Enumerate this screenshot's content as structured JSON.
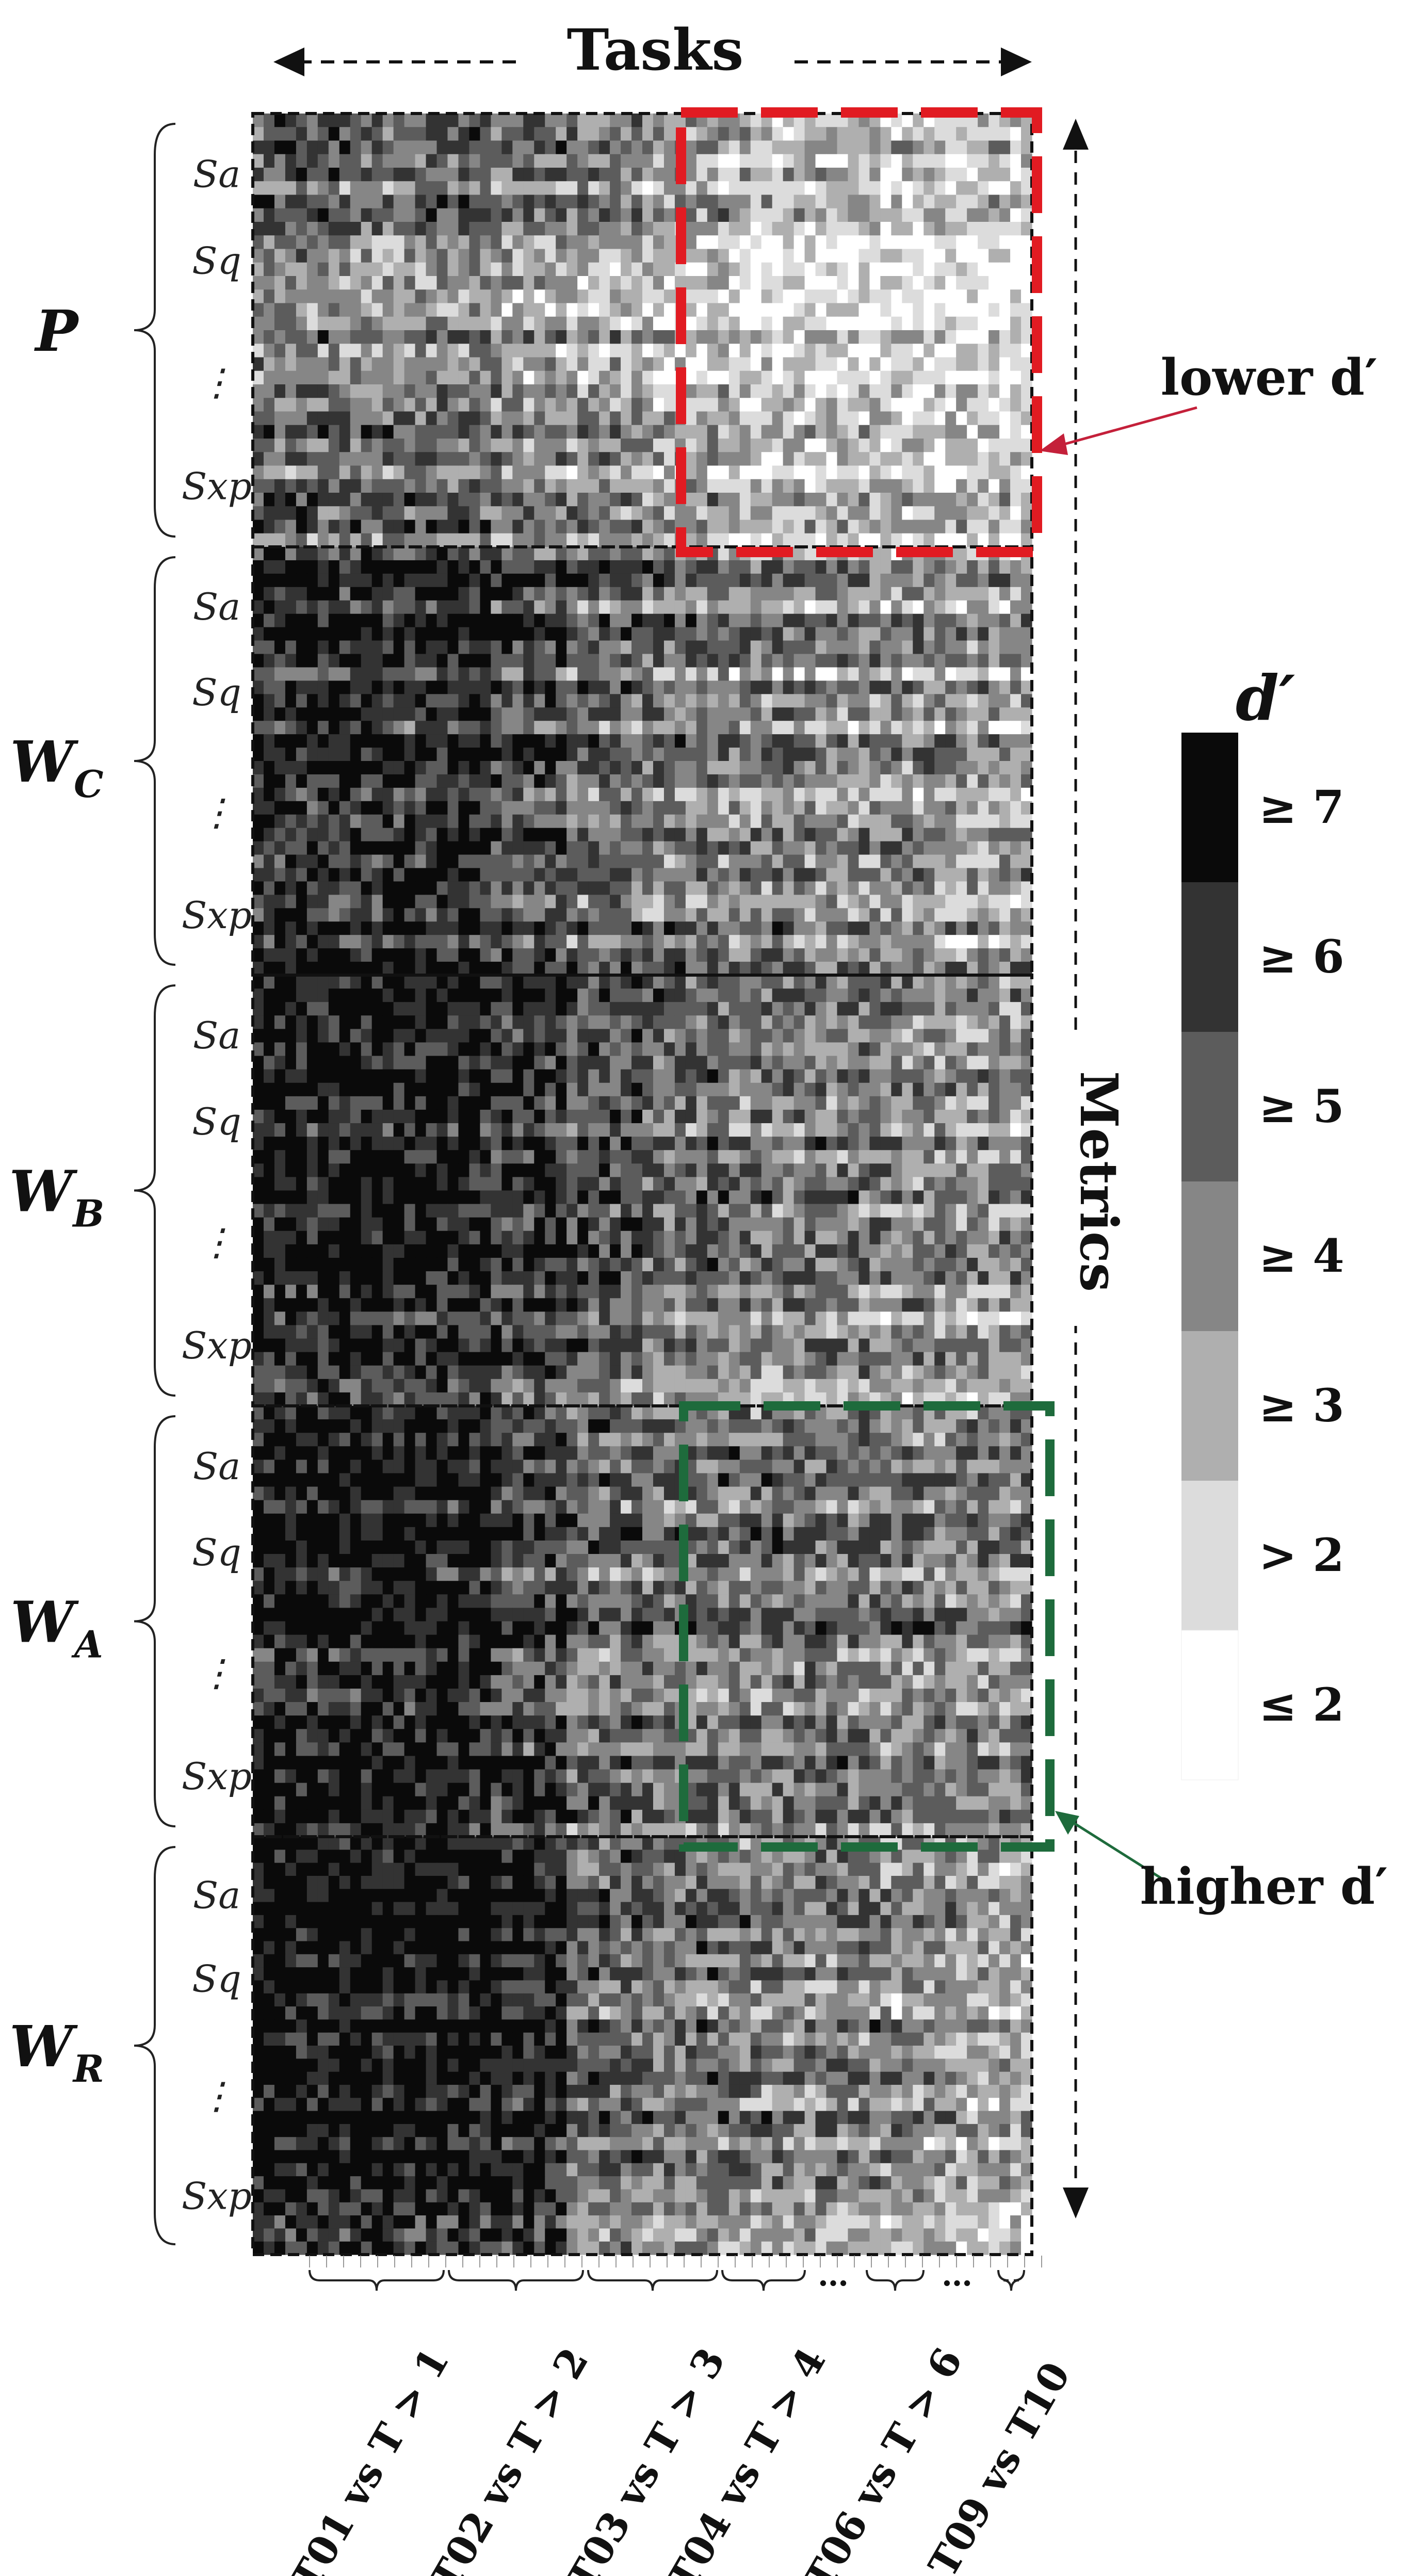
{
  "chart_data": {
    "type": "heatmap",
    "title": "Tasks",
    "y_axis_label": "Metrics",
    "legend": {
      "title": "d′",
      "entries": [
        "≥ 7",
        "≥ 6",
        "≥ 5",
        "≥ 4",
        "≥ 3",
        "> 2",
        "≤ 2"
      ],
      "colors": [
        "#0a0a0a",
        "#333333",
        "#5c5c5c",
        "#868686",
        "#afafaf",
        "#dcdcdc",
        "#ffffff"
      ],
      "placement": "right"
    },
    "x_groups": [
      "T01 vs T > 1",
      "T02 vs T > 2",
      "T03 vs T > 3",
      "T04 vs T > 4",
      "T06 vs T > 6",
      "T09 vs T10"
    ],
    "x_ellipses": [
      "…",
      "…"
    ],
    "row_groups": [
      {
        "name": "P",
        "name_sub": "",
        "labels": [
          "Sa",
          "Sq",
          "⋮",
          "Sxp"
        ],
        "levels": [
          0.6,
          0.55,
          0.6,
          0.5,
          0.45,
          0.35,
          0.25,
          0.25,
          0.2,
          0.2
        ]
      },
      {
        "name": "W",
        "name_sub": "C",
        "labels": [
          "Sa",
          "Sq",
          "⋮",
          "Sxp"
        ],
        "levels": [
          0.85,
          0.85,
          0.85,
          0.7,
          0.6,
          0.55,
          0.5,
          0.45,
          0.45,
          0.4
        ]
      },
      {
        "name": "W",
        "name_sub": "B",
        "labels": [
          "Sa",
          "Sq",
          "⋮",
          "Sxp"
        ],
        "levels": [
          0.9,
          0.9,
          0.88,
          0.75,
          0.65,
          0.55,
          0.5,
          0.5,
          0.45,
          0.4
        ]
      },
      {
        "name": "W",
        "name_sub": "A",
        "labels": [
          "Sa",
          "Sq",
          "⋮",
          "Sxp"
        ],
        "levels": [
          0.92,
          0.92,
          0.9,
          0.75,
          0.6,
          0.55,
          0.55,
          0.55,
          0.5,
          0.5
        ]
      },
      {
        "name": "W",
        "name_sub": "R",
        "labels": [
          "Sa",
          "Sq",
          "⋮",
          "Sxp"
        ],
        "levels": [
          0.95,
          0.95,
          0.95,
          0.9,
          0.6,
          0.55,
          0.5,
          0.5,
          0.45,
          0.35
        ]
      }
    ],
    "annotations": [
      {
        "text": "lower d′",
        "color": "#a01828"
      },
      {
        "text": "higher d′",
        "color": "#1e6b3c"
      }
    ],
    "cells_rows": 160,
    "cells_cols": 72
  }
}
